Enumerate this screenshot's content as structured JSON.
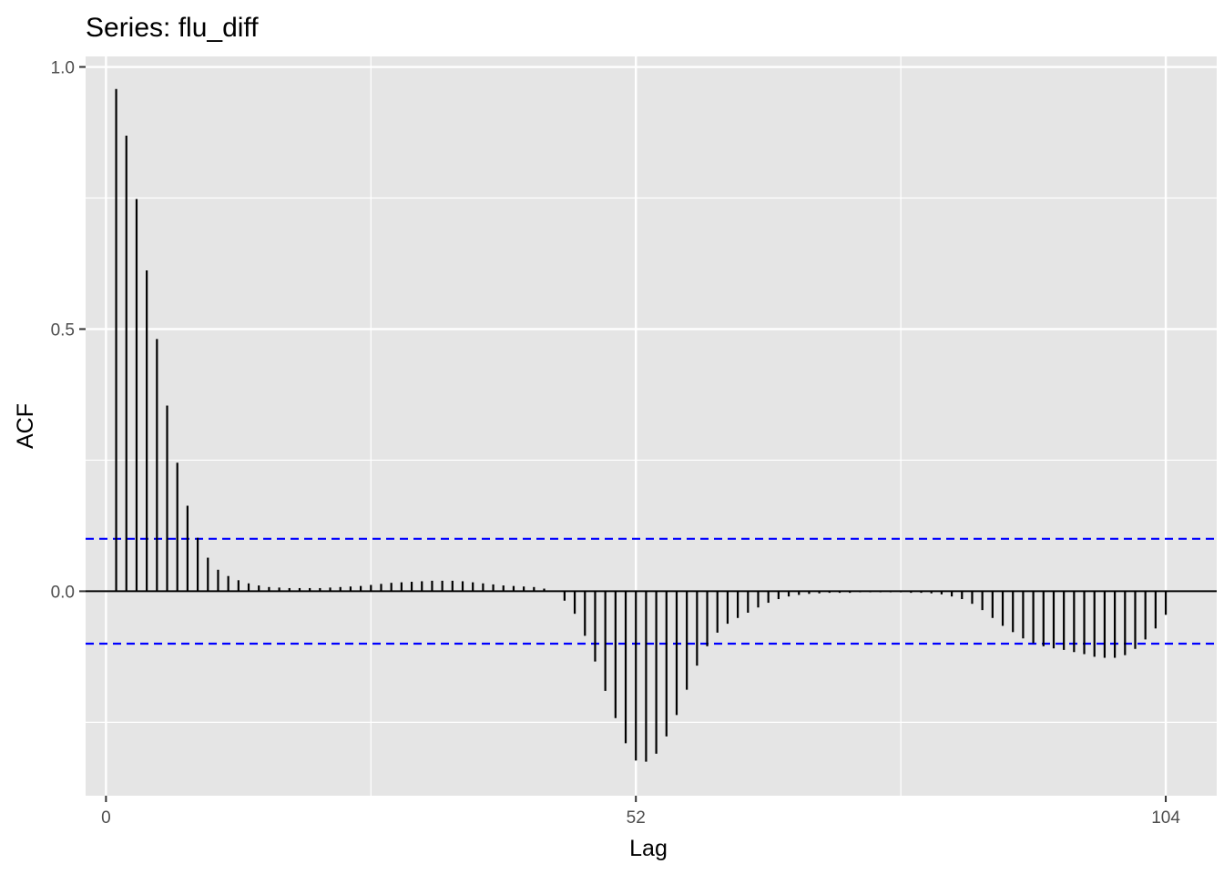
{
  "chart_data": {
    "type": "bar",
    "title": "Series: flu_diff",
    "xlabel": "Lag",
    "ylabel": "ACF",
    "xlim": [
      -2,
      109
    ],
    "ylim": [
      -0.39,
      1.02
    ],
    "xticks": [
      0,
      52,
      104
    ],
    "xtick_labels": [
      "0",
      "52",
      "104"
    ],
    "yticks": [
      0.0,
      0.5,
      1.0
    ],
    "ytick_labels": [
      "0.0",
      "0.5",
      "1.0"
    ],
    "grid": true,
    "confidence_limit": 0.1,
    "colors": {
      "panel": "#e5e5e5",
      "grid": "#ffffff",
      "bars": "#000000",
      "confidence": "#0000ff"
    },
    "lags": [
      1,
      2,
      3,
      4,
      5,
      6,
      7,
      8,
      9,
      10,
      11,
      12,
      13,
      14,
      15,
      16,
      17,
      18,
      19,
      20,
      21,
      22,
      23,
      24,
      25,
      26,
      27,
      28,
      29,
      30,
      31,
      32,
      33,
      34,
      35,
      36,
      37,
      38,
      39,
      40,
      41,
      42,
      43,
      44,
      45,
      46,
      47,
      48,
      49,
      50,
      51,
      52,
      53,
      54,
      55,
      56,
      57,
      58,
      59,
      60,
      61,
      62,
      63,
      64,
      65,
      66,
      67,
      68,
      69,
      70,
      71,
      72,
      73,
      74,
      75,
      76,
      77,
      78,
      79,
      80,
      81,
      82,
      83,
      84,
      85,
      86,
      87,
      88,
      89,
      90,
      91,
      92,
      93,
      94,
      95,
      96,
      97,
      98,
      99,
      100,
      101,
      102,
      103,
      104
    ],
    "values": [
      0.958,
      0.869,
      0.748,
      0.612,
      0.481,
      0.354,
      0.245,
      0.163,
      0.102,
      0.064,
      0.041,
      0.029,
      0.021,
      0.015,
      0.011,
      0.008,
      0.007,
      0.006,
      0.006,
      0.006,
      0.006,
      0.007,
      0.008,
      0.009,
      0.01,
      0.012,
      0.014,
      0.016,
      0.017,
      0.018,
      0.019,
      0.02,
      0.02,
      0.02,
      0.019,
      0.017,
      0.015,
      0.013,
      0.011,
      0.01,
      0.009,
      0.008,
      0.005,
      0.001,
      -0.018,
      -0.043,
      -0.085,
      -0.134,
      -0.19,
      -0.242,
      -0.29,
      -0.323,
      -0.325,
      -0.31,
      -0.277,
      -0.236,
      -0.188,
      -0.142,
      -0.105,
      -0.079,
      -0.062,
      -0.051,
      -0.041,
      -0.031,
      -0.022,
      -0.015,
      -0.01,
      -0.007,
      -0.005,
      -0.004,
      -0.003,
      -0.003,
      -0.003,
      -0.002,
      -0.002,
      -0.002,
      -0.002,
      -0.002,
      -0.003,
      -0.003,
      -0.004,
      -0.006,
      -0.01,
      -0.015,
      -0.024,
      -0.036,
      -0.051,
      -0.066,
      -0.078,
      -0.09,
      -0.099,
      -0.105,
      -0.109,
      -0.112,
      -0.116,
      -0.12,
      -0.125,
      -0.127,
      -0.127,
      -0.122,
      -0.11,
      -0.092,
      -0.071,
      -0.045
    ]
  }
}
